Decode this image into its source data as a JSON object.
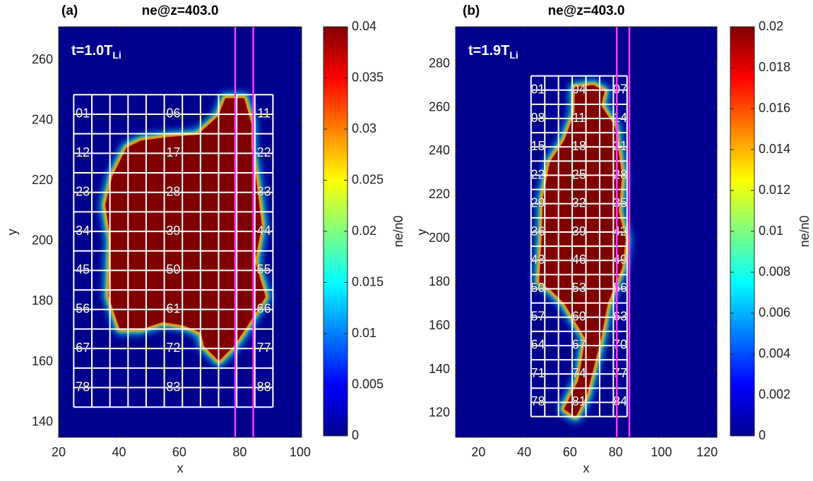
{
  "chart_data": [
    {
      "type": "heatmap",
      "panel": "(a)",
      "title": "ne@z=403.0",
      "annotation": "t=1.0T",
      "annotation_subscript": "Li",
      "x_label": "x",
      "y_label": "y",
      "xlim": [
        20,
        100.5
      ],
      "ylim": [
        135,
        271
      ],
      "xticks": [
        20,
        40,
        60,
        80,
        100
      ],
      "yticks": [
        140,
        160,
        180,
        200,
        220,
        240,
        260
      ],
      "background_value": 0,
      "blob": {
        "value": 0.04,
        "x": [
          47.4,
          56.7,
          66.1,
          73.1,
          75.4,
          81.3,
          83.6,
          83.6,
          84.8,
          87.1,
          84.8,
          88.3,
          82.5,
          77.8,
          73.1,
          68.4,
          67.3,
          61.4,
          54.4,
          47.4,
          40.4,
          36.8,
          37.5,
          35.7,
          38.0,
          42.7
        ],
        "y": [
          233.1,
          234.3,
          235.0,
          241.3,
          247.1,
          247.1,
          238.9,
          230.8,
          223.7,
          205.0,
          193.3,
          181.6,
          172.3,
          165.3,
          160.6,
          165.3,
          169.9,
          172.3,
          173.4,
          171.1,
          171.1,
          181.6,
          200.4,
          212.0,
          221.4,
          230.8
        ]
      },
      "overlay_grid": {
        "xlim": [
          25,
          91
        ],
        "ylim": [
          145,
          248.5
        ],
        "columns": 11,
        "rows": 16,
        "label_columns": [
          0,
          5,
          10
        ],
        "label_rows": [
          0,
          2,
          4,
          6,
          8,
          10,
          12,
          14
        ],
        "labels": [
          "01",
          "06",
          "11",
          "12",
          "17",
          "22",
          "23",
          "28",
          "33",
          "34",
          "39",
          "44",
          "45",
          "50",
          "55",
          "56",
          "61",
          "66",
          "67",
          "72",
          "77",
          "78",
          "83",
          "88"
        ]
      },
      "lines_x": [
        78.5,
        84.5
      ],
      "line_color": "#ff3cff",
      "colorbar": {
        "label": "ne/n0",
        "lim": [
          0,
          0.04
        ],
        "ticks": [
          0,
          0.005,
          0.01,
          0.015,
          0.02,
          0.025,
          0.03,
          0.035,
          0.04
        ],
        "colormap": [
          "#00008f",
          "#0000ff",
          "#0080ff",
          "#00ffff",
          "#80ff80",
          "#ffff00",
          "#ff8000",
          "#ff0000",
          "#800000"
        ]
      }
    },
    {
      "type": "heatmap",
      "panel": "(b)",
      "title": "ne@z=403.0",
      "annotation": "t=1.9T",
      "annotation_subscript": "Li",
      "x_label": "x",
      "y_label": "y",
      "xlim": [
        10,
        124.3
      ],
      "ylim": [
        109,
        297
      ],
      "xticks": [
        20,
        40,
        60,
        80,
        100,
        120
      ],
      "yticks": [
        120,
        140,
        160,
        180,
        200,
        220,
        240,
        260,
        280
      ],
      "background_value": 0,
      "blob": {
        "value": 0.02,
        "x": [
          62.4,
          70.2,
          74.8,
          73.3,
          79.4,
          82.5,
          81.0,
          84.1,
          82.5,
          76.3,
          73.3,
          70.2,
          67.1,
          62.4,
          57.8,
          64.0,
          67.1,
          57.8,
          51.6,
          46.9,
          47.9,
          48.5,
          51.6,
          57.8,
          62.4
        ],
        "y": [
          269.0,
          270.0,
          267.4,
          260.9,
          251.2,
          228.6,
          212.5,
          199.5,
          186.6,
          170.5,
          154.3,
          141.4,
          128.5,
          118.8,
          122.0,
          134.9,
          154.3,
          170.5,
          176.9,
          180.2,
          199.5,
          218.9,
          235.1,
          244.8,
          257.7
        ]
      },
      "overlay_grid": {
        "xlim": [
          43,
          85
        ],
        "ylim": [
          118.5,
          274.5
        ],
        "columns": 7,
        "rows": 24,
        "label_columns": [
          0,
          3,
          6
        ],
        "label_rows": [
          0,
          2,
          4,
          6,
          8,
          10,
          12,
          14,
          16,
          18,
          20,
          22
        ],
        "labels": [
          "01",
          "04",
          "07",
          "08",
          "11",
          "14",
          "15",
          "18",
          "21",
          "22",
          "25",
          "28",
          "29",
          "32",
          "35",
          "36",
          "39",
          "42",
          "43",
          "46",
          "49",
          "50",
          "53",
          "56",
          "57",
          "60",
          "63",
          "64",
          "67",
          "70",
          "71",
          "74",
          "77",
          "78",
          "81",
          "84"
        ]
      },
      "lines_x": [
        80.5,
        86
      ],
      "line_color": "#ff3cff",
      "colorbar": {
        "label": "ne/n0",
        "lim": [
          0,
          0.02
        ],
        "ticks": [
          0,
          0.002,
          0.004,
          0.006,
          0.008,
          0.01,
          0.012,
          0.014,
          0.016,
          0.018,
          0.02
        ],
        "colormap": [
          "#00008f",
          "#0000ff",
          "#0080ff",
          "#00ffff",
          "#80ff80",
          "#ffff00",
          "#ff8000",
          "#ff0000",
          "#800000"
        ]
      }
    }
  ]
}
